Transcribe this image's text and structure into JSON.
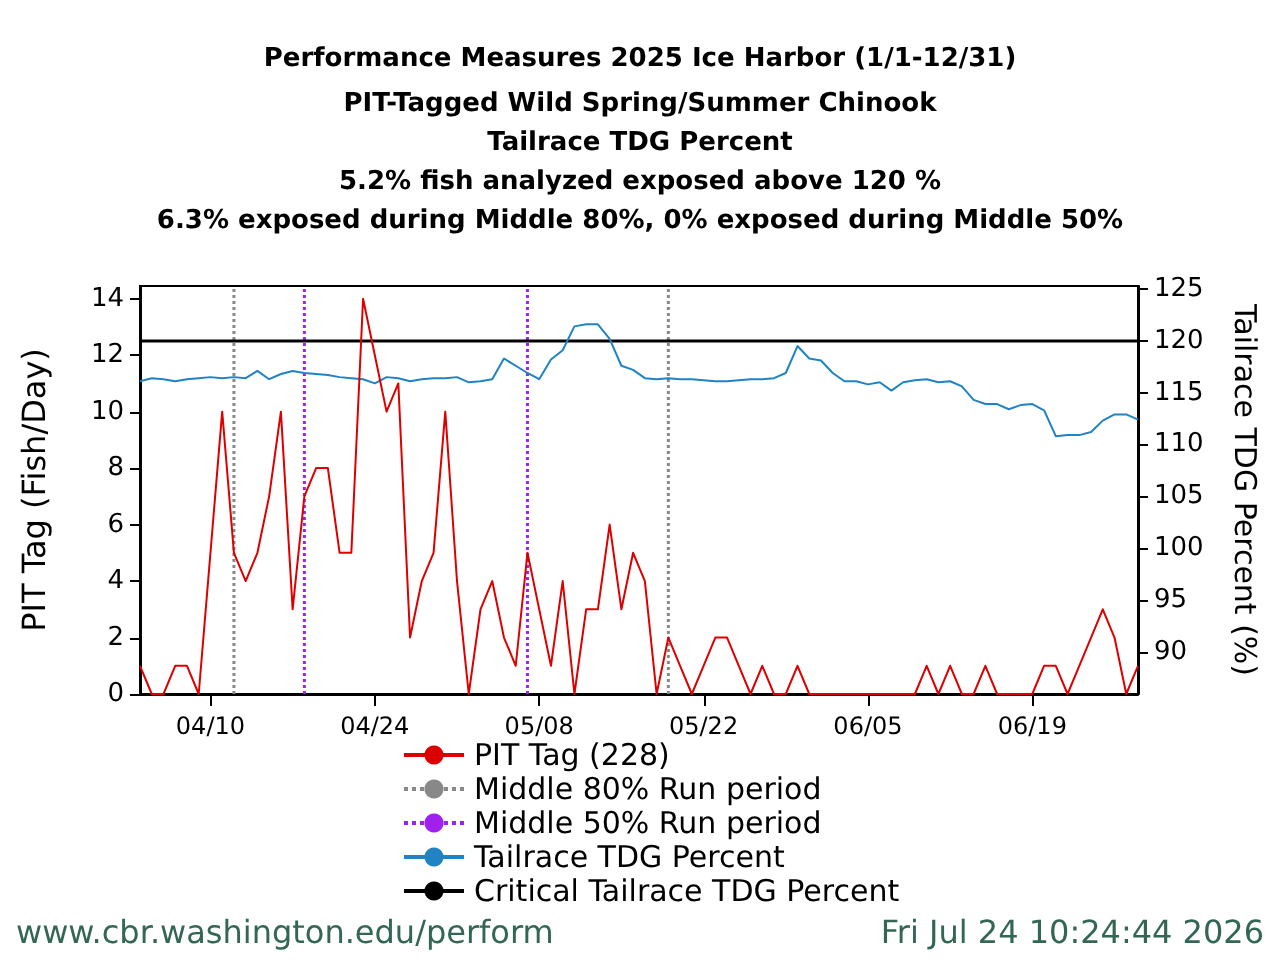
{
  "chart_data": {
    "type": "line",
    "title": "Performance Measures 2025 Ice Harbor (1/1-12/31)",
    "subtitle": "PIT-Tagged Wild Spring/Summer Chinook\nTailrace TDG Percent\n5.2% fish analyzed exposed above 120 %\n6.3% exposed during Middle 80%, 0% exposed during Middle 50%",
    "ylabel": "PIT Tag (Fish/Day)",
    "y2label": "Tailrace TDG Percent (%)",
    "annotations": [
      "www.cbr.washington.edu/perform",
      "Fri Jul 24 10:24:44 2026"
    ],
    "x": [
      "2025-04-04",
      "2025-04-05",
      "2025-04-06",
      "2025-04-07",
      "2025-04-08",
      "2025-04-09",
      "2025-04-10",
      "2025-04-11",
      "2025-04-12",
      "2025-04-13",
      "2025-04-14",
      "2025-04-15",
      "2025-04-16",
      "2025-04-17",
      "2025-04-18",
      "2025-04-19",
      "2025-04-20",
      "2025-04-21",
      "2025-04-22",
      "2025-04-23",
      "2025-04-24",
      "2025-04-25",
      "2025-04-26",
      "2025-04-27",
      "2025-04-28",
      "2025-04-29",
      "2025-04-30",
      "2025-05-01",
      "2025-05-02",
      "2025-05-03",
      "2025-05-04",
      "2025-05-05",
      "2025-05-06",
      "2025-05-07",
      "2025-05-08",
      "2025-05-09",
      "2025-05-10",
      "2025-05-11",
      "2025-05-12",
      "2025-05-13",
      "2025-05-14",
      "2025-05-15",
      "2025-05-16",
      "2025-05-17",
      "2025-05-18",
      "2025-05-19",
      "2025-05-20",
      "2025-05-21",
      "2025-05-22",
      "2025-05-23",
      "2025-05-24",
      "2025-05-25",
      "2025-05-26",
      "2025-05-27",
      "2025-05-28",
      "2025-05-29",
      "2025-05-30",
      "2025-05-31",
      "2025-06-01",
      "2025-06-02",
      "2025-06-03",
      "2025-06-04",
      "2025-06-05",
      "2025-06-06",
      "2025-06-07",
      "2025-06-08",
      "2025-06-09",
      "2025-06-10",
      "2025-06-11",
      "2025-06-12",
      "2025-06-13",
      "2025-06-14",
      "2025-06-15",
      "2025-06-16",
      "2025-06-17",
      "2025-06-18",
      "2025-06-19",
      "2025-06-20",
      "2025-06-21",
      "2025-06-22",
      "2025-06-23",
      "2025-06-24",
      "2025-06-25",
      "2025-06-26",
      "2025-06-27",
      "2025-06-28"
    ],
    "series": [
      {
        "name": "PIT Tag (228)",
        "color": "#dd0000",
        "values": [
          1,
          0,
          0,
          1,
          1,
          0,
          5,
          10,
          5,
          4,
          5,
          7,
          10,
          3,
          7,
          8,
          8,
          5,
          5,
          14,
          12,
          10,
          11,
          2,
          4,
          5,
          10,
          4,
          0,
          3,
          4,
          2,
          1,
          5,
          3,
          1,
          4,
          0,
          3,
          3,
          6,
          3,
          5,
          4,
          0,
          2,
          1,
          0,
          1,
          2,
          2,
          1,
          0,
          1,
          0,
          0,
          1,
          0,
          0,
          0,
          0,
          0,
          0,
          0,
          0,
          0,
          0,
          1,
          0,
          1,
          0,
          0,
          1,
          0,
          0,
          0,
          0,
          1,
          1,
          0,
          1,
          2,
          3,
          2,
          0,
          1
        ]
      },
      {
        "name": "Tailrace TDG Percent",
        "color": "#1f83c4",
        "axis": "y2",
        "values": [
          116.1,
          116.4,
          116.3,
          116.1,
          116.3,
          116.4,
          116.5,
          116.4,
          116.5,
          116.4,
          117.1,
          116.3,
          116.8,
          117.1,
          116.9,
          116.8,
          116.7,
          116.5,
          116.4,
          116.3,
          115.9,
          116.5,
          116.4,
          116.1,
          116.3,
          116.4,
          116.4,
          116.5,
          116.0,
          116.1,
          116.3,
          118.3,
          117.6,
          116.9,
          116.3,
          118.2,
          119.1,
          121.4,
          121.6,
          121.6,
          120.2,
          117.6,
          117.2,
          116.4,
          116.3,
          116.4,
          116.3,
          116.3,
          116.2,
          116.1,
          116.1,
          116.2,
          116.3,
          116.3,
          116.4,
          116.9,
          119.5,
          118.3,
          118.1,
          116.9,
          116.1,
          116.1,
          115.8,
          116.0,
          115.2,
          116.0,
          116.2,
          116.3,
          116.0,
          116.1,
          115.6,
          114.3,
          113.9,
          113.9,
          113.4,
          113.8,
          113.9,
          113.3,
          110.8,
          110.9,
          110.9,
          111.2,
          112.3,
          112.9,
          112.9,
          112.4
        ]
      }
    ],
    "ref_lines": [
      {
        "axis": "x",
        "value": "2025-04-12",
        "label": "Middle 80% Run period",
        "color": "#888888",
        "line_style": "dotted"
      },
      {
        "axis": "x",
        "value": "2025-04-18",
        "label": "Middle 50% Run period",
        "color": "#a020f0",
        "line_style": "dotted"
      },
      {
        "axis": "x",
        "value": "2025-05-07",
        "color": "#a020f0",
        "line_style": "dotted"
      },
      {
        "axis": "x",
        "value": "2025-05-19",
        "color": "#888888",
        "line_style": "dotted"
      },
      {
        "axis": "y2",
        "value": 120,
        "label": "Critical Tailrace TDG Percent",
        "color": "#000000",
        "line_style": "solid"
      }
    ],
    "xlim": [
      "2025-04-04",
      "2025-06-28"
    ],
    "xticks": [
      {
        "value": "2025-04-10",
        "label": "04/10"
      },
      {
        "value": "2025-04-24",
        "label": "04/24"
      },
      {
        "value": "2025-05-08",
        "label": "05/08"
      },
      {
        "value": "2025-05-22",
        "label": "05/22"
      },
      {
        "value": "2025-06-05",
        "label": "06/05"
      },
      {
        "value": "2025-06-19",
        "label": "06/19"
      }
    ],
    "ylim": [
      0,
      14.45
    ],
    "yticks": [
      0,
      2,
      4,
      6,
      8,
      10,
      12,
      14
    ],
    "y2lim": [
      85.9,
      125.3
    ],
    "y2ticks": [
      90,
      95,
      100,
      105,
      110,
      115,
      120,
      125
    ],
    "grid": false,
    "legend": "bottom",
    "marker": "none",
    "line_style": "solid"
  }
}
